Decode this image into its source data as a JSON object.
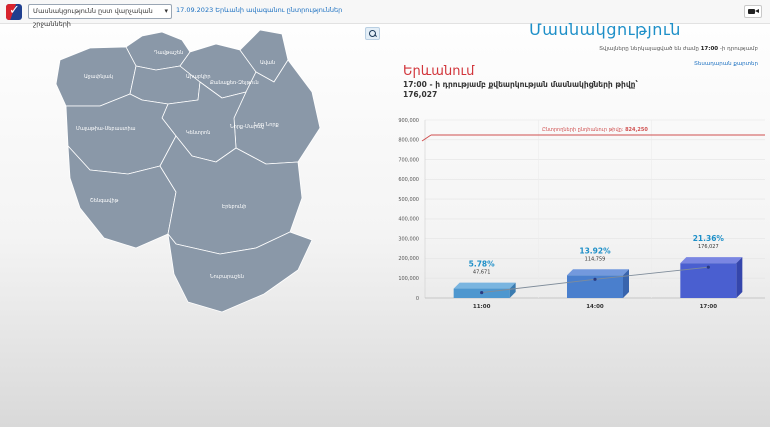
{
  "header": {
    "region_select_value": "Մասնակցությունն ըստ վարչական շրջանների",
    "election_link": "17.09.2023 Երևանի ավագանու ընտրություններ"
  },
  "icons": {
    "logo": "cec-checkmark-logo",
    "dropdown": "chevron-down-icon",
    "video": "video-camera-icon",
    "zoom": "search-icon"
  },
  "colors": {
    "title": "#1d8fc8",
    "region": "#d2353b",
    "map_fill": "#8a98a8",
    "bar": "#3f5fc8",
    "bar_light": "#4e97cf",
    "total_line": "#d05050"
  },
  "map": {
    "districts": [
      {
        "name": "Դավթաշեն"
      },
      {
        "name": "Աջափնյակ"
      },
      {
        "name": "Արաբկիր"
      },
      {
        "name": "Քանաքեռ-Զեյթուն"
      },
      {
        "name": "Ավան"
      },
      {
        "name": "Նոր Նորք"
      },
      {
        "name": "Կենտրոն"
      },
      {
        "name": "Մալաթիա-Սեբաստիա"
      },
      {
        "name": "Էրեբունի"
      },
      {
        "name": "Շենգավիթ"
      },
      {
        "name": "Նորք-Մարաշ"
      },
      {
        "name": "Նուբարաշեն"
      }
    ]
  },
  "panel": {
    "title": "Մասնակցություն",
    "data_note_prefix": "Տվյալները ներկայացված են ժամը",
    "data_note_time": "17:00",
    "data_note_suffix": "-ի դրությամբ",
    "help_link": "Տեսադարան քարտեր",
    "region": "Երևանում",
    "subtitle": "17:00 - ի դրությամբ քվեարկության մասնակիցների թիվը՝",
    "subtotal": "176,027"
  },
  "chart_data": {
    "type": "bar",
    "categories": [
      "11:00",
      "14:00",
      "17:00"
    ],
    "values": [
      47671,
      114759,
      176027
    ],
    "value_labels": [
      "47,671",
      "114,759",
      "176,027"
    ],
    "percent_labels": [
      "5.78%",
      "13.92%",
      "21.36%"
    ],
    "total_line": {
      "label_prefix": "Ընտրողների ընդհանուր թիվը:",
      "label_value": "824,250",
      "value": 824250
    },
    "yticks": [
      "0",
      "100,000",
      "200,000",
      "300,000",
      "400,000",
      "500,000",
      "600,000",
      "700,000",
      "800,000",
      "900,000"
    ],
    "ylim": [
      0,
      900000
    ],
    "grid": true
  }
}
